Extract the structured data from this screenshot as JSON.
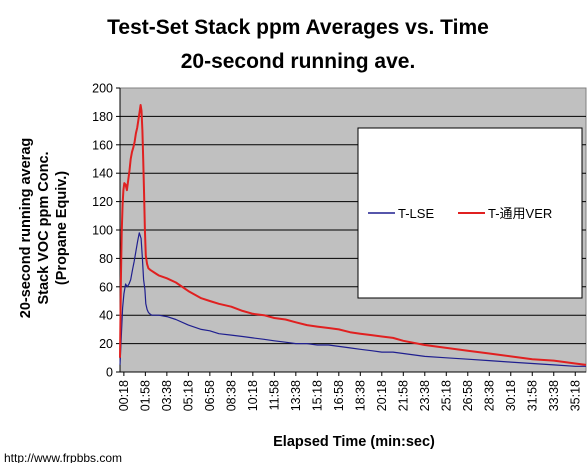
{
  "watermark": "http://www.frpbbs.com",
  "chart_data": {
    "type": "line",
    "title_lines": [
      "Test-Set Stack ppm Averages vs. Time",
      "20-second running ave."
    ],
    "title": "Test-Set Stack ppm Averages vs. Time 20-second running ave.",
    "xlabel": "Elapsed Time (min:sec)",
    "ylabel_lines": [
      "20-second running averag",
      "Stack VOC ppm Conc.",
      "(Propane Equiv.)"
    ],
    "ylabel": "20-second running averag Stack VOC ppm Conc. (Propane Equiv.)",
    "ylim": [
      0,
      200
    ],
    "yticks": [
      0,
      20,
      40,
      60,
      80,
      100,
      120,
      140,
      160,
      180,
      200
    ],
    "xlim_seconds": [
      0,
      2168
    ],
    "xticks": [
      "00:18",
      "01:58",
      "03:38",
      "05:18",
      "06:58",
      "08:38",
      "10:18",
      "11:58",
      "13:38",
      "15:18",
      "16:58",
      "18:38",
      "20:18",
      "21:58",
      "23:38",
      "25:18",
      "26:58",
      "28:38",
      "30:18",
      "31:58",
      "33:38",
      "35:18"
    ],
    "grid": "horizontal",
    "legend_position": "right",
    "series": [
      {
        "name": "T-LSE",
        "color": "#1f1f8f",
        "x": [
          "00:00",
          "00:06",
          "00:12",
          "00:18",
          "00:26",
          "00:34",
          "00:42",
          "00:50",
          "00:58",
          "01:06",
          "01:14",
          "01:22",
          "01:30",
          "01:38",
          "01:44",
          "01:50",
          "01:56",
          "02:00",
          "02:06",
          "02:12",
          "02:18",
          "02:28",
          "02:40",
          "03:00",
          "03:38",
          "04:20",
          "05:18",
          "06:18",
          "06:58",
          "07:40",
          "08:38",
          "09:30",
          "10:18",
          "11:10",
          "11:58",
          "12:50",
          "13:38",
          "14:30",
          "15:18",
          "16:10",
          "16:58",
          "17:50",
          "18:38",
          "19:30",
          "20:18",
          "21:10",
          "21:58",
          "23:38",
          "25:18",
          "26:58",
          "28:38",
          "30:18",
          "31:58",
          "33:38",
          "35:18",
          "36:08"
        ],
        "values": [
          5,
          25,
          45,
          55,
          62,
          60,
          62,
          65,
          72,
          78,
          85,
          92,
          98,
          94,
          80,
          65,
          58,
          48,
          44,
          42,
          41,
          40,
          40,
          40,
          39,
          37,
          33,
          30,
          29,
          27,
          26,
          25,
          24,
          23,
          22,
          21,
          20,
          20,
          19,
          19,
          18,
          17,
          16,
          15,
          14,
          14,
          13,
          11,
          10,
          9,
          8,
          7,
          6,
          5,
          4,
          4
        ]
      },
      {
        "name": "T-通用VER",
        "color": "#e02020",
        "x": [
          "00:00",
          "00:04",
          "00:08",
          "00:12",
          "00:16",
          "00:20",
          "00:26",
          "00:32",
          "00:38",
          "00:44",
          "00:50",
          "00:56",
          "01:02",
          "01:08",
          "01:14",
          "01:20",
          "01:26",
          "01:32",
          "01:36",
          "01:40",
          "01:44",
          "01:48",
          "01:52",
          "01:56",
          "02:00",
          "02:06",
          "02:12",
          "02:20",
          "02:30",
          "02:40",
          "02:50",
          "03:00",
          "03:38",
          "04:20",
          "05:18",
          "06:18",
          "06:58",
          "07:40",
          "08:38",
          "09:30",
          "10:18",
          "11:10",
          "11:58",
          "12:50",
          "13:38",
          "14:30",
          "15:18",
          "16:10",
          "16:58",
          "17:50",
          "18:38",
          "19:30",
          "20:18",
          "21:10",
          "21:58",
          "23:38",
          "25:18",
          "26:58",
          "28:38",
          "30:18",
          "31:58",
          "33:38",
          "35:18",
          "36:08"
        ],
        "values": [
          10,
          65,
          98,
          118,
          128,
          133,
          132,
          128,
          135,
          142,
          150,
          155,
          158,
          162,
          168,
          172,
          178,
          184,
          188,
          184,
          170,
          150,
          125,
          100,
          82,
          76,
          73,
          72,
          71,
          70,
          69,
          68,
          66,
          63,
          57,
          52,
          50,
          48,
          46,
          43,
          41,
          40,
          38,
          37,
          35,
          33,
          32,
          31,
          30,
          28,
          27,
          26,
          25,
          24,
          22,
          19,
          17,
          15,
          13,
          11,
          9,
          8,
          6,
          5
        ]
      }
    ]
  }
}
